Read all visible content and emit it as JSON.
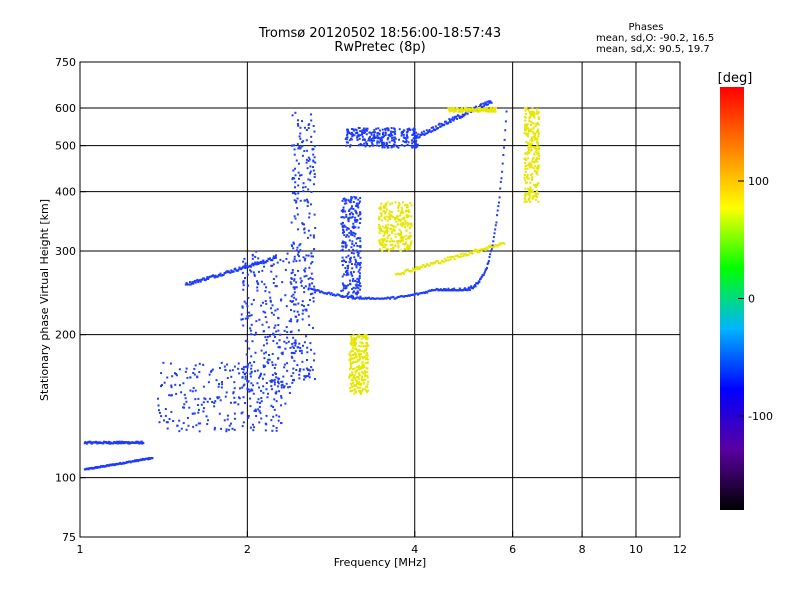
{
  "header": {
    "title": "Tromsø 20120502 18:56:00-18:57:43",
    "subtitle": "RwPretec (8p)"
  },
  "phases": {
    "title": "Phases",
    "line1": "mean, sd,O: -90.2, 16.5",
    "line2": "mean, sd,X:  90.5, 19.7"
  },
  "chart_data": {
    "type": "scatter",
    "xlabel": "Frequency [MHz]",
    "ylabel": "Stationary phase Virtual Height [km]",
    "xscale": "log",
    "yscale": "log",
    "xlim": [
      1,
      12
    ],
    "ylim": [
      75,
      750
    ],
    "x_ticks": [
      1,
      2,
      4,
      6,
      8,
      10,
      12
    ],
    "y_ticks": [
      75,
      100,
      200,
      300,
      400,
      500,
      600,
      750
    ],
    "x_gridlines": [
      2,
      4,
      6,
      8,
      10
    ],
    "y_gridlines": [
      100,
      200,
      300,
      400,
      500,
      600
    ],
    "grid": true,
    "color_scale": {
      "label": "[deg]",
      "range": [
        -180,
        180
      ],
      "ticks": [
        100,
        0,
        -100
      ],
      "colors": [
        "#000000",
        "#5a00a0",
        "#0000ff",
        "#00b4ff",
        "#00ff00",
        "#ffff00",
        "#ff8000",
        "#ff0000"
      ]
    },
    "series": [
      {
        "label_color": "#1e3cff",
        "phase": -100,
        "traces": [
          {
            "x_range": [
              1.02,
              1.35
            ],
            "y_range": [
              104,
              110
            ],
            "shape": "rising"
          },
          {
            "x_range": [
              1.02,
              1.3
            ],
            "y_range": [
              117,
              120
            ],
            "shape": "flat"
          },
          {
            "x_range": [
              1.38,
              2.35
            ],
            "y_range": [
              125,
              175
            ],
            "shape": "cloud"
          },
          {
            "x_range": [
              1.55,
              2.25
            ],
            "y_range": [
              255,
              290
            ],
            "shape": "rising"
          },
          {
            "x_range": [
              1.95,
              2.45
            ],
            "y_range": [
              150,
              300
            ],
            "shape": "cloud"
          },
          {
            "x_range": [
              2.4,
              2.65
            ],
            "y_range": [
              160,
              590
            ],
            "shape": "cloud"
          },
          {
            "x_range": [
              2.6,
              4.4
            ],
            "y_range": [
              238,
              250
            ],
            "shape": "trough"
          },
          {
            "x_range": [
              2.95,
              3.2
            ],
            "y_range": [
              240,
              390
            ],
            "shape": "cloud"
          },
          {
            "x_range": [
              3.0,
              4.05
            ],
            "y_range": [
              495,
              545
            ],
            "shape": "cloud"
          },
          {
            "x_range": [
              4.0,
              5.5
            ],
            "y_range": [
              520,
              620
            ],
            "shape": "rising"
          },
          {
            "x_range": [
              4.4,
              5.85
            ],
            "y_range": [
              248,
              590
            ],
            "shape": "cusp"
          }
        ]
      },
      {
        "label_color": "#e6e600",
        "phase": 95,
        "traces": [
          {
            "x_range": [
              3.05,
              3.3
            ],
            "y_range": [
              150,
              200
            ],
            "shape": "cloud"
          },
          {
            "x_range": [
              3.45,
              3.95
            ],
            "y_range": [
              300,
              380
            ],
            "shape": "cloud"
          },
          {
            "x_range": [
              3.7,
              5.8
            ],
            "y_range": [
              268,
              312
            ],
            "shape": "rising"
          },
          {
            "x_range": [
              6.3,
              6.7
            ],
            "y_range": [
              380,
              600
            ],
            "shape": "cloud"
          },
          {
            "x_range": [
              4.6,
              5.6
            ],
            "y_range": [
              580,
              610
            ],
            "shape": "flat"
          }
        ]
      }
    ]
  }
}
